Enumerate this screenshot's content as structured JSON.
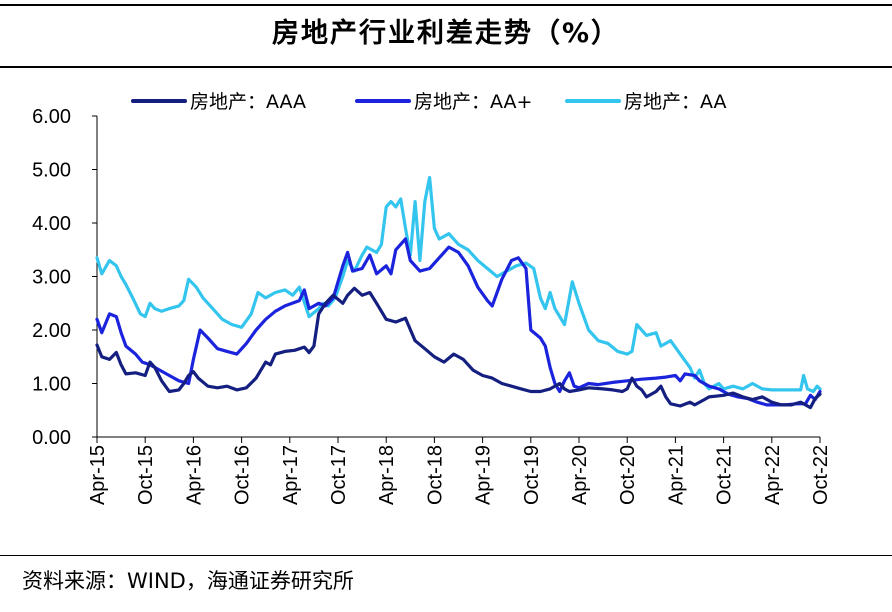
{
  "title": "房地产行业利差走势（%）",
  "source": "资料来源：WIND，海通证券研究所",
  "chart_data": {
    "type": "line",
    "title": "房地产行业利差走势（%）",
    "xlabel": "",
    "ylabel": "",
    "ylim": [
      0,
      6
    ],
    "xlim": [
      2015.25,
      2022.75
    ],
    "y_ticks": [
      {
        "value": 0,
        "label": "0.00"
      },
      {
        "value": 1,
        "label": "1.00"
      },
      {
        "value": 2,
        "label": "2.00"
      },
      {
        "value": 3,
        "label": "3.00"
      },
      {
        "value": 4,
        "label": "4.00"
      },
      {
        "value": 5,
        "label": "5.00"
      },
      {
        "value": 6,
        "label": "6.00"
      }
    ],
    "x_ticks": [
      {
        "value": 2015.25,
        "label": "Apr-15"
      },
      {
        "value": 2015.75,
        "label": "Oct-15"
      },
      {
        "value": 2016.25,
        "label": "Apr-16"
      },
      {
        "value": 2016.75,
        "label": "Oct-16"
      },
      {
        "value": 2017.25,
        "label": "Apr-17"
      },
      {
        "value": 2017.75,
        "label": "Oct-17"
      },
      {
        "value": 2018.25,
        "label": "Apr-18"
      },
      {
        "value": 2018.75,
        "label": "Oct-18"
      },
      {
        "value": 2019.25,
        "label": "Apr-19"
      },
      {
        "value": 2019.75,
        "label": "Oct-19"
      },
      {
        "value": 2020.25,
        "label": "Apr-20"
      },
      {
        "value": 2020.75,
        "label": "Oct-20"
      },
      {
        "value": 2021.25,
        "label": "Apr-21"
      },
      {
        "value": 2021.75,
        "label": "Oct-21"
      },
      {
        "value": 2022.25,
        "label": "Apr-22"
      },
      {
        "value": 2022.75,
        "label": "Oct-22"
      }
    ],
    "legend_position": "top",
    "series": [
      {
        "name": "房地产：AAA",
        "color": "#141f80",
        "points": [
          [
            2015.25,
            1.72
          ],
          [
            2015.3,
            1.5
          ],
          [
            2015.38,
            1.45
          ],
          [
            2015.45,
            1.58
          ],
          [
            2015.5,
            1.35
          ],
          [
            2015.55,
            1.18
          ],
          [
            2015.65,
            1.2
          ],
          [
            2015.75,
            1.15
          ],
          [
            2015.8,
            1.4
          ],
          [
            2015.85,
            1.3
          ],
          [
            2015.92,
            1.05
          ],
          [
            2016.0,
            0.85
          ],
          [
            2016.1,
            0.88
          ],
          [
            2016.15,
            1.0
          ],
          [
            2016.2,
            1.15
          ],
          [
            2016.25,
            1.22
          ],
          [
            2016.3,
            1.1
          ],
          [
            2016.4,
            0.95
          ],
          [
            2016.5,
            0.92
          ],
          [
            2016.6,
            0.95
          ],
          [
            2016.7,
            0.88
          ],
          [
            2016.8,
            0.92
          ],
          [
            2016.9,
            1.1
          ],
          [
            2017.0,
            1.4
          ],
          [
            2017.05,
            1.35
          ],
          [
            2017.1,
            1.55
          ],
          [
            2017.2,
            1.6
          ],
          [
            2017.3,
            1.62
          ],
          [
            2017.4,
            1.68
          ],
          [
            2017.45,
            1.58
          ],
          [
            2017.5,
            1.7
          ],
          [
            2017.55,
            2.3
          ],
          [
            2017.62,
            2.5
          ],
          [
            2017.7,
            2.65
          ],
          [
            2017.8,
            2.5
          ],
          [
            2017.85,
            2.65
          ],
          [
            2017.92,
            2.78
          ],
          [
            2018.0,
            2.65
          ],
          [
            2018.08,
            2.7
          ],
          [
            2018.15,
            2.5
          ],
          [
            2018.25,
            2.2
          ],
          [
            2018.35,
            2.15
          ],
          [
            2018.45,
            2.22
          ],
          [
            2018.55,
            1.8
          ],
          [
            2018.65,
            1.65
          ],
          [
            2018.75,
            1.5
          ],
          [
            2018.85,
            1.4
          ],
          [
            2018.95,
            1.55
          ],
          [
            2019.05,
            1.45
          ],
          [
            2019.15,
            1.25
          ],
          [
            2019.25,
            1.15
          ],
          [
            2019.35,
            1.1
          ],
          [
            2019.45,
            1.0
          ],
          [
            2019.55,
            0.95
          ],
          [
            2019.65,
            0.9
          ],
          [
            2019.75,
            0.85
          ],
          [
            2019.85,
            0.85
          ],
          [
            2019.95,
            0.9
          ],
          [
            2020.05,
            1.0
          ],
          [
            2020.1,
            0.9
          ],
          [
            2020.15,
            0.85
          ],
          [
            2020.25,
            0.88
          ],
          [
            2020.35,
            0.92
          ],
          [
            2020.5,
            0.9
          ],
          [
            2020.6,
            0.88
          ],
          [
            2020.7,
            0.85
          ],
          [
            2020.75,
            0.9
          ],
          [
            2020.8,
            1.1
          ],
          [
            2020.85,
            0.95
          ],
          [
            2020.9,
            0.88
          ],
          [
            2020.95,
            0.75
          ],
          [
            2021.05,
            0.85
          ],
          [
            2021.1,
            0.95
          ],
          [
            2021.15,
            0.75
          ],
          [
            2021.2,
            0.62
          ],
          [
            2021.3,
            0.58
          ],
          [
            2021.4,
            0.65
          ],
          [
            2021.45,
            0.6
          ],
          [
            2021.55,
            0.7
          ],
          [
            2021.6,
            0.75
          ],
          [
            2021.75,
            0.78
          ],
          [
            2021.85,
            0.82
          ],
          [
            2021.95,
            0.75
          ],
          [
            2022.05,
            0.7
          ],
          [
            2022.15,
            0.75
          ],
          [
            2022.25,
            0.65
          ],
          [
            2022.35,
            0.6
          ],
          [
            2022.45,
            0.6
          ],
          [
            2022.55,
            0.65
          ],
          [
            2022.65,
            0.55
          ],
          [
            2022.7,
            0.72
          ],
          [
            2022.75,
            0.8
          ]
        ]
      },
      {
        "name": "房地产：AA+",
        "color": "#1b24dc",
        "points": [
          [
            2015.25,
            2.2
          ],
          [
            2015.3,
            1.95
          ],
          [
            2015.38,
            2.3
          ],
          [
            2015.45,
            2.25
          ],
          [
            2015.5,
            1.95
          ],
          [
            2015.55,
            1.7
          ],
          [
            2015.65,
            1.55
          ],
          [
            2015.72,
            1.4
          ],
          [
            2015.8,
            1.35
          ],
          [
            2015.9,
            1.25
          ],
          [
            2016.0,
            1.15
          ],
          [
            2016.1,
            1.05
          ],
          [
            2016.2,
            1.0
          ],
          [
            2016.25,
            1.45
          ],
          [
            2016.32,
            2.0
          ],
          [
            2016.4,
            1.85
          ],
          [
            2016.5,
            1.65
          ],
          [
            2016.6,
            1.6
          ],
          [
            2016.7,
            1.55
          ],
          [
            2016.8,
            1.75
          ],
          [
            2016.9,
            2.0
          ],
          [
            2017.0,
            2.2
          ],
          [
            2017.1,
            2.35
          ],
          [
            2017.2,
            2.45
          ],
          [
            2017.35,
            2.55
          ],
          [
            2017.4,
            2.75
          ],
          [
            2017.45,
            2.4
          ],
          [
            2017.55,
            2.5
          ],
          [
            2017.62,
            2.45
          ],
          [
            2017.7,
            2.6
          ],
          [
            2017.8,
            3.2
          ],
          [
            2017.85,
            3.45
          ],
          [
            2017.9,
            3.1
          ],
          [
            2018.0,
            3.15
          ],
          [
            2018.08,
            3.4
          ],
          [
            2018.15,
            3.05
          ],
          [
            2018.25,
            3.2
          ],
          [
            2018.3,
            3.05
          ],
          [
            2018.35,
            3.5
          ],
          [
            2018.45,
            3.7
          ],
          [
            2018.5,
            3.3
          ],
          [
            2018.6,
            3.1
          ],
          [
            2018.7,
            3.15
          ],
          [
            2018.8,
            3.35
          ],
          [
            2018.9,
            3.55
          ],
          [
            2019.0,
            3.45
          ],
          [
            2019.1,
            3.2
          ],
          [
            2019.2,
            2.8
          ],
          [
            2019.3,
            2.55
          ],
          [
            2019.35,
            2.45
          ],
          [
            2019.45,
            2.95
          ],
          [
            2019.55,
            3.3
          ],
          [
            2019.62,
            3.35
          ],
          [
            2019.7,
            3.15
          ],
          [
            2019.75,
            2.0
          ],
          [
            2019.85,
            1.85
          ],
          [
            2019.9,
            1.7
          ],
          [
            2019.95,
            1.3
          ],
          [
            2020.0,
            1.0
          ],
          [
            2020.05,
            0.85
          ],
          [
            2020.1,
            1.05
          ],
          [
            2020.15,
            1.2
          ],
          [
            2020.2,
            0.95
          ],
          [
            2020.25,
            0.92
          ],
          [
            2020.35,
            1.0
          ],
          [
            2020.45,
            0.98
          ],
          [
            2020.6,
            1.02
          ],
          [
            2020.75,
            1.05
          ],
          [
            2020.9,
            1.08
          ],
          [
            2021.05,
            1.1
          ],
          [
            2021.15,
            1.12
          ],
          [
            2021.25,
            1.15
          ],
          [
            2021.3,
            1.05
          ],
          [
            2021.35,
            1.18
          ],
          [
            2021.45,
            1.15
          ],
          [
            2021.5,
            1.05
          ],
          [
            2021.6,
            0.95
          ],
          [
            2021.7,
            0.9
          ],
          [
            2021.8,
            0.8
          ],
          [
            2021.9,
            0.75
          ],
          [
            2022.0,
            0.72
          ],
          [
            2022.1,
            0.65
          ],
          [
            2022.2,
            0.6
          ],
          [
            2022.3,
            0.6
          ],
          [
            2022.4,
            0.6
          ],
          [
            2022.5,
            0.62
          ],
          [
            2022.6,
            0.62
          ],
          [
            2022.65,
            0.78
          ],
          [
            2022.7,
            0.7
          ],
          [
            2022.75,
            0.85
          ]
        ]
      },
      {
        "name": "房地产：AA",
        "color": "#34c5ef",
        "points": [
          [
            2015.25,
            3.35
          ],
          [
            2015.3,
            3.05
          ],
          [
            2015.38,
            3.3
          ],
          [
            2015.45,
            3.2
          ],
          [
            2015.5,
            3.0
          ],
          [
            2015.55,
            2.85
          ],
          [
            2015.62,
            2.6
          ],
          [
            2015.7,
            2.3
          ],
          [
            2015.75,
            2.25
          ],
          [
            2015.8,
            2.5
          ],
          [
            2015.85,
            2.4
          ],
          [
            2015.92,
            2.35
          ],
          [
            2016.0,
            2.4
          ],
          [
            2016.1,
            2.45
          ],
          [
            2016.15,
            2.55
          ],
          [
            2016.2,
            2.95
          ],
          [
            2016.28,
            2.8
          ],
          [
            2016.35,
            2.6
          ],
          [
            2016.45,
            2.4
          ],
          [
            2016.55,
            2.2
          ],
          [
            2016.65,
            2.1
          ],
          [
            2016.75,
            2.05
          ],
          [
            2016.85,
            2.3
          ],
          [
            2016.92,
            2.7
          ],
          [
            2017.0,
            2.6
          ],
          [
            2017.1,
            2.7
          ],
          [
            2017.2,
            2.75
          ],
          [
            2017.28,
            2.65
          ],
          [
            2017.35,
            2.8
          ],
          [
            2017.45,
            2.25
          ],
          [
            2017.55,
            2.4
          ],
          [
            2017.6,
            2.5
          ],
          [
            2017.65,
            2.45
          ],
          [
            2017.72,
            2.6
          ],
          [
            2017.8,
            3.0
          ],
          [
            2017.85,
            3.3
          ],
          [
            2017.92,
            3.1
          ],
          [
            2018.0,
            3.4
          ],
          [
            2018.05,
            3.55
          ],
          [
            2018.1,
            3.5
          ],
          [
            2018.15,
            3.45
          ],
          [
            2018.2,
            3.6
          ],
          [
            2018.25,
            4.3
          ],
          [
            2018.3,
            4.4
          ],
          [
            2018.35,
            4.3
          ],
          [
            2018.4,
            4.45
          ],
          [
            2018.45,
            3.9
          ],
          [
            2018.5,
            3.4
          ],
          [
            2018.55,
            4.4
          ],
          [
            2018.6,
            3.3
          ],
          [
            2018.65,
            4.4
          ],
          [
            2018.7,
            4.85
          ],
          [
            2018.75,
            3.9
          ],
          [
            2018.8,
            3.7
          ],
          [
            2018.9,
            3.8
          ],
          [
            2019.0,
            3.6
          ],
          [
            2019.1,
            3.5
          ],
          [
            2019.2,
            3.3
          ],
          [
            2019.3,
            3.15
          ],
          [
            2019.4,
            3.0
          ],
          [
            2019.5,
            3.1
          ],
          [
            2019.6,
            3.2
          ],
          [
            2019.7,
            3.25
          ],
          [
            2019.78,
            3.15
          ],
          [
            2019.85,
            2.6
          ],
          [
            2019.9,
            2.4
          ],
          [
            2019.95,
            2.7
          ],
          [
            2020.0,
            2.4
          ],
          [
            2020.1,
            2.1
          ],
          [
            2020.18,
            2.9
          ],
          [
            2020.25,
            2.5
          ],
          [
            2020.35,
            2.0
          ],
          [
            2020.45,
            1.8
          ],
          [
            2020.55,
            1.75
          ],
          [
            2020.65,
            1.6
          ],
          [
            2020.75,
            1.55
          ],
          [
            2020.8,
            1.6
          ],
          [
            2020.85,
            2.1
          ],
          [
            2020.95,
            1.9
          ],
          [
            2021.05,
            1.95
          ],
          [
            2021.1,
            1.7
          ],
          [
            2021.2,
            1.8
          ],
          [
            2021.3,
            1.55
          ],
          [
            2021.4,
            1.3
          ],
          [
            2021.45,
            1.1
          ],
          [
            2021.5,
            1.25
          ],
          [
            2021.55,
            1.0
          ],
          [
            2021.6,
            0.9
          ],
          [
            2021.7,
            1.0
          ],
          [
            2021.75,
            0.9
          ],
          [
            2021.85,
            0.95
          ],
          [
            2021.95,
            0.9
          ],
          [
            2022.05,
            1.0
          ],
          [
            2022.15,
            0.9
          ],
          [
            2022.25,
            0.88
          ],
          [
            2022.35,
            0.88
          ],
          [
            2022.45,
            0.88
          ],
          [
            2022.55,
            0.88
          ],
          [
            2022.58,
            1.15
          ],
          [
            2022.62,
            0.9
          ],
          [
            2022.68,
            0.85
          ],
          [
            2022.72,
            0.95
          ],
          [
            2022.75,
            0.9
          ]
        ]
      }
    ]
  }
}
